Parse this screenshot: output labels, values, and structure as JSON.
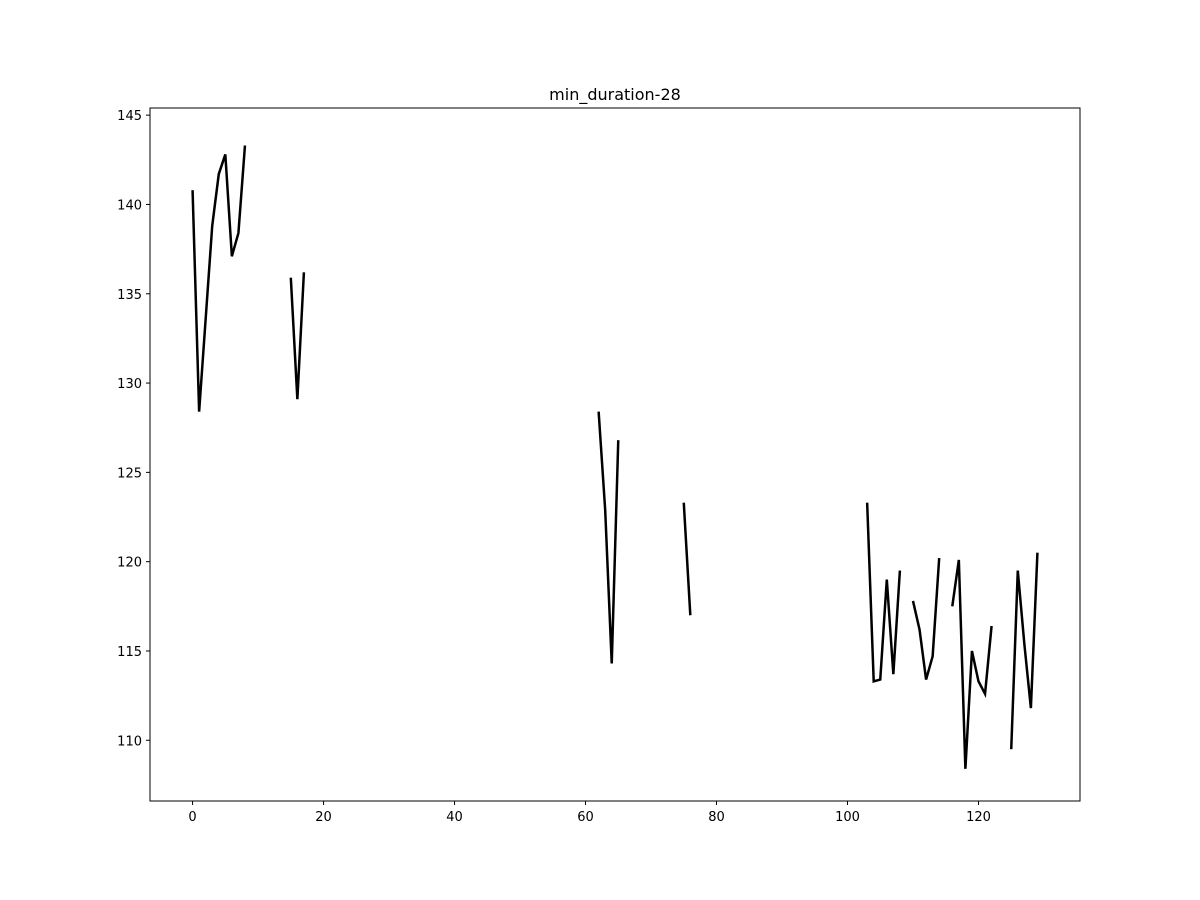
{
  "chart_data": {
    "type": "line",
    "title": "min_duration-28",
    "xlabel": "",
    "ylabel": "",
    "xlim": [
      -6.5,
      135.5
    ],
    "ylim": [
      106.6,
      145.4
    ],
    "xticks": [
      0,
      20,
      40,
      60,
      80,
      100,
      120
    ],
    "yticks": [
      110,
      115,
      120,
      125,
      130,
      135,
      140,
      145
    ],
    "grid": false,
    "line_color": "#000000",
    "segments": [
      {
        "x": [
          0,
          1,
          2,
          3,
          4,
          5,
          6,
          7,
          8
        ],
        "y": [
          140.8,
          128.4,
          133.6,
          138.8,
          141.7,
          142.8,
          137.1,
          138.4,
          143.3
        ]
      },
      {
        "x": [
          15,
          16,
          17
        ],
        "y": [
          135.9,
          129.1,
          136.2
        ]
      },
      {
        "x": [
          62,
          63,
          64,
          65
        ],
        "y": [
          128.4,
          122.9,
          114.3,
          126.8
        ]
      },
      {
        "x": [
          75,
          76
        ],
        "y": [
          123.3,
          117.0
        ]
      },
      {
        "x": [
          103,
          104,
          105,
          106,
          107,
          108
        ],
        "y": [
          123.3,
          113.3,
          113.4,
          119.0,
          113.7,
          119.5
        ]
      },
      {
        "x": [
          110,
          111,
          112,
          113,
          114
        ],
        "y": [
          117.8,
          116.2,
          113.4,
          114.7,
          120.2
        ]
      },
      {
        "x": [
          116,
          117,
          118,
          119,
          120,
          121,
          122
        ],
        "y": [
          117.5,
          120.1,
          108.4,
          115.0,
          113.3,
          112.6,
          116.4
        ]
      },
      {
        "x": [
          125,
          126,
          127,
          128,
          129
        ],
        "y": [
          109.5,
          119.5,
          115.4,
          111.8,
          120.5
        ]
      }
    ]
  }
}
